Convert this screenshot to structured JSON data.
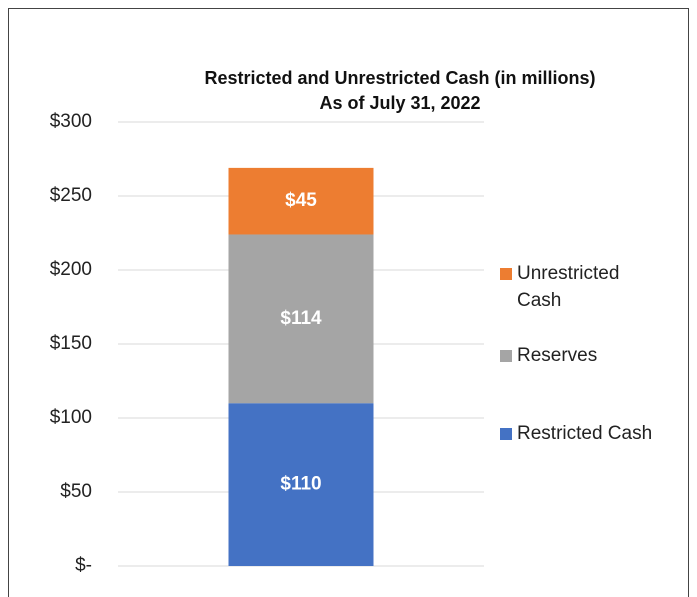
{
  "chart_data": {
    "type": "stacked-bar",
    "title": "Restricted and Unrestricted Cash (in millions)",
    "subtitle": "As of July 31, 2022",
    "categories": [
      null
    ],
    "series": [
      {
        "name": "Restricted Cash",
        "color": "#4472c4",
        "values": [
          110
        ],
        "value_labels": [
          "$110"
        ]
      },
      {
        "name": "Reserves",
        "color": "#a5a5a5",
        "values": [
          114
        ],
        "value_labels": [
          "$114"
        ]
      },
      {
        "name": "Unrestricted Cash",
        "color": "#ed7d31",
        "values": [
          45
        ],
        "value_labels": [
          "$45"
        ]
      }
    ],
    "ylim": [
      0,
      300
    ],
    "yticks": [
      {
        "value": 0,
        "label": "$-"
      },
      {
        "value": 50,
        "label": "$50"
      },
      {
        "value": 100,
        "label": "$100"
      },
      {
        "value": 150,
        "label": "$150"
      },
      {
        "value": 200,
        "label": "$200"
      },
      {
        "value": 250,
        "label": "$250"
      },
      {
        "value": 300,
        "label": "$300"
      }
    ],
    "grid": true,
    "legend": "right"
  }
}
